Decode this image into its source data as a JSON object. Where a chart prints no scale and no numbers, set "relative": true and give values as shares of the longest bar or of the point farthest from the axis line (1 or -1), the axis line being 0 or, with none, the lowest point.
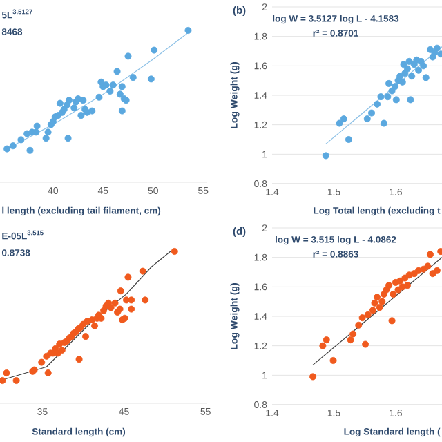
{
  "chart_data": [
    {
      "type": "scatter",
      "relative": true,
      "xlim": [
        34.7,
        55.4
      ],
      "xticks": [
        40,
        45,
        50,
        55
      ],
      "xlabel": "l length (excluding tail filament, cm)",
      "annotations": [
        "5L$^{3.5127}$",
        "8468"
      ],
      "series": [
        {
          "marker": "circle",
          "color": "#5ba8df",
          "x": [
            35.4,
            36.0,
            36.8,
            37.7,
            37.4,
            37.9,
            38.4,
            38.3,
            39.3,
            39.5,
            39.8,
            40.0,
            40.2,
            40.5,
            40.7,
            40.9,
            41.1,
            41.4,
            41.5,
            41.6,
            42.1,
            42.3,
            42.5,
            42.8,
            43.0,
            43.2,
            43.4,
            43.9,
            44.6,
            44.8,
            45.0,
            45.3,
            45.7,
            46.0,
            46.4,
            46.7,
            46.9,
            47.1,
            47.3,
            46.9,
            47.5,
            48.0,
            49.8,
            50.1,
            53.5
          ],
          "values": [
            0.22,
            0.24,
            0.28,
            0.21,
            0.32,
            0.33,
            0.37,
            0.33,
            0.29,
            0.33,
            0.38,
            0.4,
            0.43,
            0.44,
            0.52,
            0.46,
            0.48,
            0.51,
            0.29,
            0.54,
            0.49,
            0.53,
            0.55,
            0.44,
            0.54,
            0.48,
            0.46,
            0.47,
            0.56,
            0.66,
            0.63,
            0.64,
            0.6,
            0.64,
            0.73,
            0.58,
            0.63,
            0.55,
            0.54,
            0.47,
            0.83,
            0.69,
            0.68,
            0.87,
            1
          ]
        },
        {
          "type": "line",
          "color": "#8cc0e6",
          "x": [
            35.4,
            40,
            45,
            50,
            53.8
          ],
          "values": [
            0.22,
            0.38,
            0.58,
            0.81,
            1.0
          ]
        }
      ]
    },
    {
      "type": "scatter",
      "title": "(b)",
      "grid": "y",
      "xlim": [
        1.4,
        1.675
      ],
      "xticks": [
        1.4,
        1.5,
        1.6
      ],
      "ylim": [
        0.8,
        2
      ],
      "yticks": [
        0.8,
        1,
        1.2,
        1.4,
        1.6,
        1.8,
        2
      ],
      "xlabel": "Log Total length (excluding t",
      "ylabel": "Log Weight (g)",
      "annotations": [
        "log W = 3.5127 log L - 4.1583",
        "r² = 0.8701"
      ],
      "series": [
        {
          "marker": "circle",
          "color": "#5ba8df",
          "x": [
            1.487,
            1.509,
            1.516,
            1.524,
            1.554,
            1.561,
            1.57,
            1.581,
            1.576,
            1.587,
            1.589,
            1.594,
            1.599,
            1.601,
            1.604,
            1.607,
            1.611,
            1.613,
            1.615,
            1.619,
            1.622,
            1.624,
            1.626,
            1.63,
            1.634,
            1.637,
            1.641,
            1.645,
            1.649,
            1.656,
            1.66,
            1.663,
            1.667,
            1.673
          ],
          "values": [
            0.99,
            1.21,
            1.24,
            1.1,
            1.24,
            1.28,
            1.34,
            1.21,
            1.39,
            1.39,
            1.48,
            1.43,
            1.46,
            1.37,
            1.5,
            1.53,
            1.49,
            1.61,
            1.55,
            1.58,
            1.63,
            1.37,
            1.53,
            1.61,
            1.64,
            1.57,
            1.63,
            1.6,
            1.52,
            1.71,
            1.66,
            1.69,
            1.72,
            1.68
          ]
        },
        {
          "type": "line",
          "color": "#8cc0e6",
          "x": [
            1.487,
            1.675
          ],
          "values": [
            1.07,
            1.73
          ]
        }
      ]
    },
    {
      "type": "scatter",
      "relative": true,
      "xlim": [
        29.8,
        55.2
      ],
      "xticks": [
        35,
        45,
        55
      ],
      "xlabel": "Standard length (cm)",
      "annotations": [
        "E-05L$^{3.515}$",
        "0.8738"
      ],
      "series": [
        {
          "marker": "circle",
          "color": "#f05a1e",
          "x": [
            30.1,
            30.6,
            31.8,
            33.8,
            34.0,
            34.9,
            35.7,
            35.5,
            36.0,
            36.3,
            36.6,
            36.9,
            37.1,
            37.4,
            37.7,
            38.0,
            38.3,
            38.6,
            38.8,
            39.1,
            39.4,
            39.7,
            39.5,
            40.0,
            40.3,
            40.5,
            41.1,
            41.4,
            41.7,
            41.9,
            42.2,
            42.5,
            42.8,
            43.1,
            43.4,
            43.9,
            44.2,
            44.5,
            44.6,
            44.8,
            45.1,
            45.3,
            45.5,
            45.9,
            45.9,
            47.3,
            47.6,
            51.2
          ],
          "values": [
            0.15,
            0.2,
            0.15,
            0.21,
            0.22,
            0.27,
            0.2,
            0.31,
            0.33,
            0.33,
            0.36,
            0.33,
            0.39,
            0.35,
            0.4,
            0.41,
            0.43,
            0.44,
            0.46,
            0.47,
            0.49,
            0.5,
            0.29,
            0.52,
            0.44,
            0.54,
            0.55,
            0.51,
            0.56,
            0.58,
            0.56,
            0.61,
            0.64,
            0.66,
            0.63,
            0.66,
            0.6,
            0.62,
            0.74,
            0.55,
            0.56,
            0.68,
            0.83,
            0.68,
            0.62,
            0.87,
            0.68,
            1
          ]
        },
        {
          "type": "line",
          "color": "#404040",
          "x": [
            29.8,
            35.5,
            41.1,
            45.3,
            48.4,
            50.7
          ],
          "values": [
            0.15,
            0.24,
            0.54,
            0.72,
            0.9,
            1.0
          ]
        }
      ]
    },
    {
      "type": "scatter",
      "title": "(d)",
      "grid": "y",
      "xlim": [
        1.4,
        1.675
      ],
      "xticks": [
        1.4,
        1.5,
        1.6
      ],
      "ylim": [
        0.8,
        2
      ],
      "yticks": [
        0.8,
        1,
        1.2,
        1.4,
        1.6,
        1.8,
        2
      ],
      "xlabel": "Log Standard length (",
      "ylabel": "Log Weight (g)",
      "annotations": [
        "log W = 3.515 log L - 4.0862",
        "r² = 0.8863"
      ],
      "series": [
        {
          "marker": "circle",
          "color": "#f05a1e",
          "x": [
            1.466,
            1.482,
            1.488,
            1.499,
            1.527,
            1.531,
            1.54,
            1.551,
            1.546,
            1.555,
            1.563,
            1.566,
            1.57,
            1.574,
            1.578,
            1.581,
            1.585,
            1.589,
            1.594,
            1.596,
            1.6,
            1.604,
            1.607,
            1.611,
            1.615,
            1.619,
            1.622,
            1.63,
            1.637,
            1.645,
            1.652,
            1.656,
            1.66,
            1.667,
            1.673
          ],
          "values": [
            0.99,
            1.2,
            1.24,
            1.1,
            1.24,
            1.28,
            1.34,
            1.21,
            1.39,
            1.41,
            1.44,
            1.49,
            1.53,
            1.46,
            1.5,
            1.55,
            1.58,
            1.61,
            1.37,
            1.55,
            1.63,
            1.58,
            1.64,
            1.6,
            1.66,
            1.61,
            1.68,
            1.69,
            1.71,
            1.72,
            1.74,
            1.82,
            1.69,
            1.71,
            1.84
          ]
        },
        {
          "type": "line",
          "color": "#404040",
          "x": [
            1.466,
            1.675
          ],
          "values": [
            1.07,
            1.8
          ]
        }
      ]
    }
  ]
}
